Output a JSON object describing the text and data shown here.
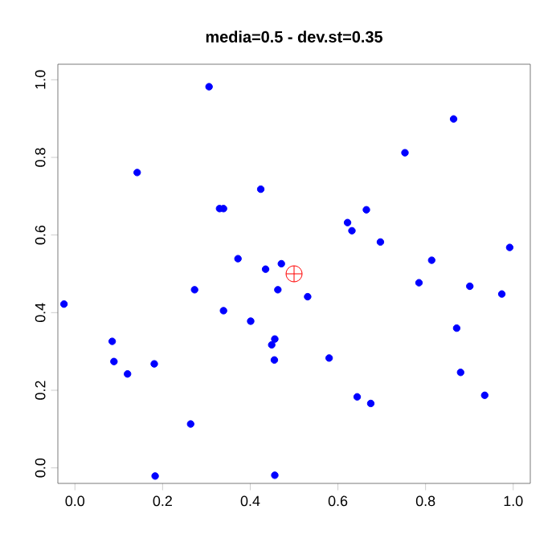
{
  "chart_data": {
    "type": "scatter",
    "title": "**media=0.5 - dev.st=0.35**",
    "xlim": [
      -0.039,
      1.039
    ],
    "ylim": [
      -0.04,
      1.04
    ],
    "xticks": [
      {
        "value": 0,
        "label": "0.0"
      },
      {
        "value": 0.2,
        "label": "0.2"
      },
      {
        "value": 0.4,
        "label": "0.4"
      },
      {
        "value": 0.6,
        "label": "0.6"
      },
      {
        "value": 0.8,
        "label": "0.8"
      },
      {
        "value": 1,
        "label": "1.0"
      }
    ],
    "yticks": [
      {
        "value": 0,
        "label": "0.0"
      },
      {
        "value": 0.2,
        "label": "0.2"
      },
      {
        "value": 0.4,
        "label": "0.4"
      },
      {
        "value": 0.6,
        "label": "0.6"
      },
      {
        "value": 0.8,
        "label": "0.8"
      },
      {
        "value": 1,
        "label": "1.0"
      }
    ],
    "series": [
      {
        "color": "#0000ff",
        "marker": "circle",
        "x": [
          0.306,
          0.142,
          0.424,
          0.33,
          0.339,
          0.372,
          0.435,
          0.471,
          0.273,
          0.463,
          -0.025,
          0.864,
          0.753,
          0.665,
          0.622,
          0.632,
          0.697,
          0.992,
          0.814,
          0.785,
          0.901,
          0.974,
          0.531,
          0.339,
          0.401,
          0.085,
          0.089,
          0.12,
          0.181,
          0.456,
          0.449,
          0.455,
          0.264,
          0.183,
          0.456,
          0.871,
          0.58,
          0.88,
          0.644,
          0.675,
          0.935
        ],
        "values": [
          0.982,
          0.761,
          0.718,
          0.668,
          0.668,
          0.539,
          0.512,
          0.526,
          0.459,
          0.459,
          0.422,
          0.899,
          0.812,
          0.665,
          0.632,
          0.611,
          0.582,
          0.568,
          0.535,
          0.477,
          0.468,
          0.448,
          0.441,
          0.405,
          0.378,
          0.326,
          0.274,
          0.242,
          0.268,
          0.332,
          0.317,
          0.278,
          0.113,
          -0.021,
          -0.019,
          0.36,
          0.283,
          0.246,
          0.183,
          0.166,
          0.187
        ]
      },
      {
        "color": "#ff0000",
        "marker": "cross",
        "x": [
          0.5
        ],
        "values": [
          0.5
        ]
      }
    ]
  }
}
